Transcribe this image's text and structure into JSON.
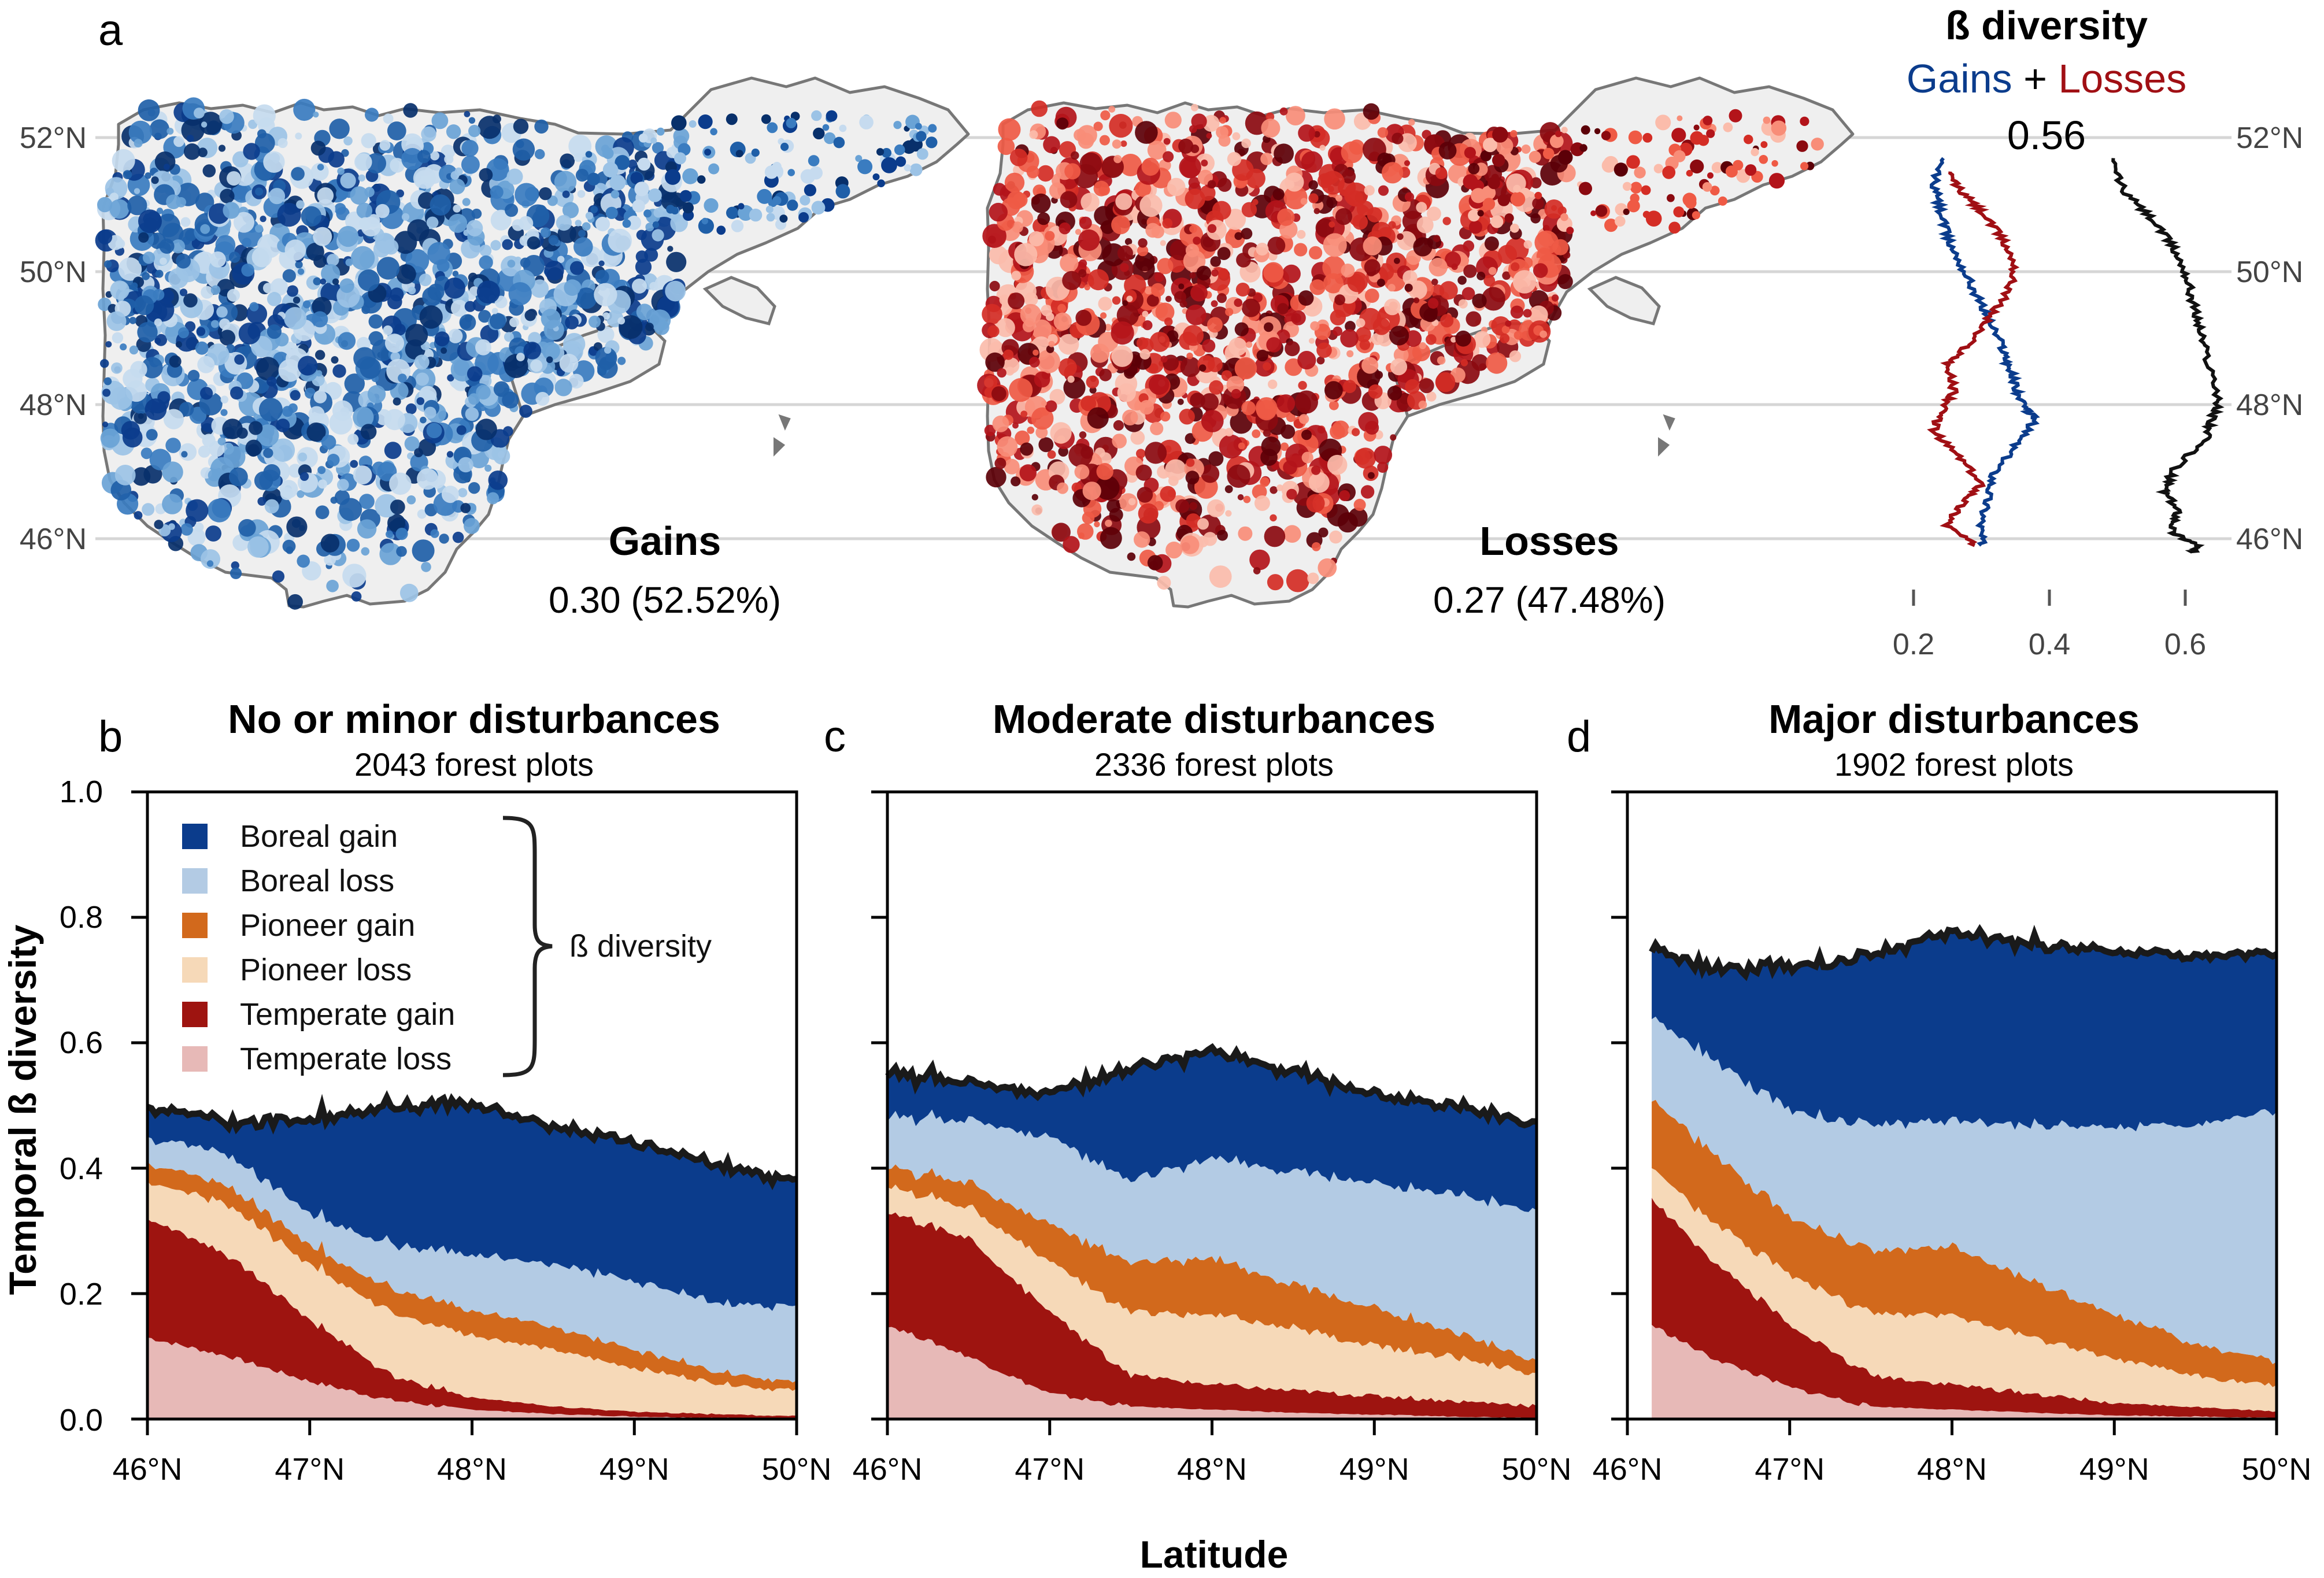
{
  "panel_labels": [
    "a",
    "b",
    "c",
    "d"
  ],
  "map_panel": {
    "lat_ticks": [
      "46°N",
      "48°N",
      "50°N",
      "52°N"
    ],
    "gains": {
      "title": "Gains",
      "value": "0.30 (52.52%)"
    },
    "losses": {
      "title": "Losses",
      "value": "0.27 (47.48%)"
    },
    "beta": {
      "title": "ß diversity",
      "gains_word": "Gains",
      "plus": " + ",
      "losses_word": "Losses",
      "total": "0.56"
    },
    "profile_ticks": [
      "0.2",
      "0.4",
      "0.6"
    ],
    "colors": {
      "gain": "#0b3c8c",
      "loss": "#a00f14",
      "total": "#111111",
      "map_fill": "#efefef",
      "map_border": "#777777"
    }
  },
  "panels": [
    {
      "key": "b",
      "title": "No or minor disturbances",
      "subtitle": "2043 forest plots"
    },
    {
      "key": "c",
      "title": "Moderate disturbances",
      "subtitle": "2336 forest plots"
    },
    {
      "key": "d",
      "title": "Major disturbances",
      "subtitle": "1902 forest plots"
    }
  ],
  "legend": {
    "items": [
      {
        "label": "Boreal gain",
        "color": "#0b3c8c"
      },
      {
        "label": "Boreal loss",
        "color": "#b3cbe4"
      },
      {
        "label": "Pioneer gain",
        "color": "#d2691c"
      },
      {
        "label": "Pioneer loss",
        "color": "#f6d9b8"
      },
      {
        "label": "Temperate gain",
        "color": "#9e1410"
      },
      {
        "label": "Temperate loss",
        "color": "#e7b9b7"
      }
    ],
    "brace_label": "ß diversity"
  },
  "axes": {
    "ylabel": "Temporal ß diversity",
    "xlabel": "Latitude",
    "y_ticks": [
      "0.0",
      "0.2",
      "0.4",
      "0.6",
      "0.8",
      "1.0"
    ],
    "x_ticks": [
      "46°N",
      "47°N",
      "48°N",
      "49°N",
      "50°N"
    ]
  },
  "chart_data": [
    {
      "type": "line",
      "title": "ß diversity",
      "x_name": "ß diversity",
      "y_name": "latitude (°N)",
      "xlim": [
        0.1,
        0.7
      ],
      "ylim": [
        45.8,
        52.0
      ],
      "series": [
        {
          "name": "Gains",
          "x": [
            0.24,
            0.23,
            0.24,
            0.25,
            0.27,
            0.29,
            0.31,
            0.33,
            0.34,
            0.35,
            0.36,
            0.38,
            0.35,
            0.32,
            0.31,
            0.3,
            0.3
          ],
          "y": [
            51.7,
            51.3,
            50.9,
            50.5,
            50.1,
            49.7,
            49.3,
            48.9,
            48.6,
            48.3,
            48.0,
            47.8,
            47.4,
            47.0,
            46.6,
            46.2,
            45.9
          ]
        },
        {
          "name": "Losses",
          "x": [
            0.25,
            0.27,
            0.3,
            0.33,
            0.35,
            0.34,
            0.31,
            0.28,
            0.25,
            0.26,
            0.24,
            0.23,
            0.27,
            0.3,
            0.27,
            0.25,
            0.29
          ],
          "y": [
            51.5,
            51.2,
            50.9,
            50.5,
            50.1,
            49.7,
            49.3,
            48.9,
            48.6,
            48.2,
            47.9,
            47.6,
            47.2,
            46.8,
            46.5,
            46.2,
            45.9
          ]
        },
        {
          "name": "Gains + Losses",
          "x": [
            0.49,
            0.51,
            0.55,
            0.58,
            0.6,
            0.61,
            0.62,
            0.63,
            0.65,
            0.64,
            0.63,
            0.58,
            0.57,
            0.59,
            0.58,
            0.62,
            0.61
          ],
          "y": [
            51.7,
            51.2,
            50.8,
            50.4,
            50.0,
            49.6,
            49.2,
            48.8,
            48.1,
            47.8,
            47.5,
            47.0,
            46.7,
            46.4,
            46.1,
            45.9,
            45.8
          ]
        }
      ]
    },
    {
      "type": "area",
      "title": "No or minor disturbances",
      "subtitle": "2043 forest plots",
      "xlabel": "Latitude",
      "ylabel": "Temporal ß diversity",
      "xlim": [
        46,
        50
      ],
      "ylim": [
        0,
        1
      ],
      "x": [
        46.0,
        46.5,
        47.0,
        47.5,
        48.0,
        48.5,
        49.0,
        49.5,
        50.0
      ],
      "series": [
        {
          "name": "Temperate loss",
          "values": [
            0.13,
            0.1,
            0.06,
            0.03,
            0.015,
            0.008,
            0.004,
            0.002,
            0.001
          ]
        },
        {
          "name": "Temperate gain",
          "values": [
            0.19,
            0.16,
            0.1,
            0.04,
            0.02,
            0.012,
            0.008,
            0.006,
            0.004
          ]
        },
        {
          "name": "Pioneer loss",
          "values": [
            0.06,
            0.08,
            0.09,
            0.1,
            0.1,
            0.09,
            0.07,
            0.05,
            0.04
          ]
        },
        {
          "name": "Pioneer gain",
          "values": [
            0.03,
            0.03,
            0.03,
            0.04,
            0.04,
            0.035,
            0.03,
            0.02,
            0.013
          ]
        },
        {
          "name": "Boreal loss",
          "values": [
            0.04,
            0.05,
            0.05,
            0.07,
            0.09,
            0.1,
            0.11,
            0.11,
            0.12
          ]
        },
        {
          "name": "Boreal gain",
          "values": [
            0.05,
            0.05,
            0.15,
            0.22,
            0.24,
            0.22,
            0.22,
            0.22,
            0.2
          ]
        }
      ]
    },
    {
      "type": "area",
      "title": "Moderate disturbances",
      "subtitle": "2336 forest plots",
      "xlabel": "Latitude",
      "ylabel": "Temporal ß diversity",
      "xlim": [
        46,
        50
      ],
      "ylim": [
        0,
        1
      ],
      "x": [
        46.0,
        46.5,
        47.0,
        47.5,
        48.0,
        48.5,
        49.0,
        49.5,
        50.0
      ],
      "series": [
        {
          "name": "Temperate loss",
          "values": [
            0.15,
            0.1,
            0.04,
            0.02,
            0.015,
            0.01,
            0.007,
            0.004,
            0.002
          ]
        },
        {
          "name": "Temperate gain",
          "values": [
            0.18,
            0.19,
            0.13,
            0.05,
            0.04,
            0.035,
            0.03,
            0.025,
            0.02
          ]
        },
        {
          "name": "Pioneer loss",
          "values": [
            0.04,
            0.05,
            0.08,
            0.1,
            0.11,
            0.1,
            0.08,
            0.07,
            0.05
          ]
        },
        {
          "name": "Pioneer gain",
          "values": [
            0.03,
            0.04,
            0.06,
            0.08,
            0.09,
            0.07,
            0.06,
            0.04,
            0.02
          ]
        },
        {
          "name": "Boreal loss",
          "values": [
            0.08,
            0.1,
            0.14,
            0.13,
            0.16,
            0.18,
            0.2,
            0.22,
            0.24
          ]
        },
        {
          "name": "Boreal gain",
          "values": [
            0.07,
            0.06,
            0.07,
            0.18,
            0.17,
            0.16,
            0.14,
            0.14,
            0.14
          ]
        }
      ]
    },
    {
      "type": "area",
      "title": "Major disturbances",
      "subtitle": "1902 forest plots",
      "xlabel": "Latitude",
      "ylabel": "Temporal ß diversity",
      "xlim": [
        46,
        50
      ],
      "ylim": [
        0,
        1
      ],
      "x": [
        46.15,
        46.5,
        47.0,
        47.5,
        48.0,
        48.5,
        49.0,
        49.5,
        50.0
      ],
      "series": [
        {
          "name": "Temperate loss",
          "values": [
            0.15,
            0.1,
            0.05,
            0.02,
            0.015,
            0.01,
            0.006,
            0.004,
            0.002
          ]
        },
        {
          "name": "Temperate gain",
          "values": [
            0.2,
            0.16,
            0.1,
            0.05,
            0.04,
            0.03,
            0.02,
            0.015,
            0.01
          ]
        },
        {
          "name": "Pioneer loss",
          "values": [
            0.05,
            0.06,
            0.08,
            0.1,
            0.11,
            0.09,
            0.07,
            0.05,
            0.04
          ]
        },
        {
          "name": "Pioneer gain",
          "values": [
            0.11,
            0.11,
            0.09,
            0.1,
            0.11,
            0.09,
            0.07,
            0.05,
            0.04
          ]
        },
        {
          "name": "Boreal loss",
          "values": [
            0.13,
            0.15,
            0.17,
            0.2,
            0.2,
            0.25,
            0.3,
            0.35,
            0.4
          ]
        },
        {
          "name": "Boreal gain",
          "values": [
            0.11,
            0.14,
            0.23,
            0.27,
            0.3,
            0.29,
            0.28,
            0.27,
            0.25
          ]
        }
      ]
    }
  ]
}
